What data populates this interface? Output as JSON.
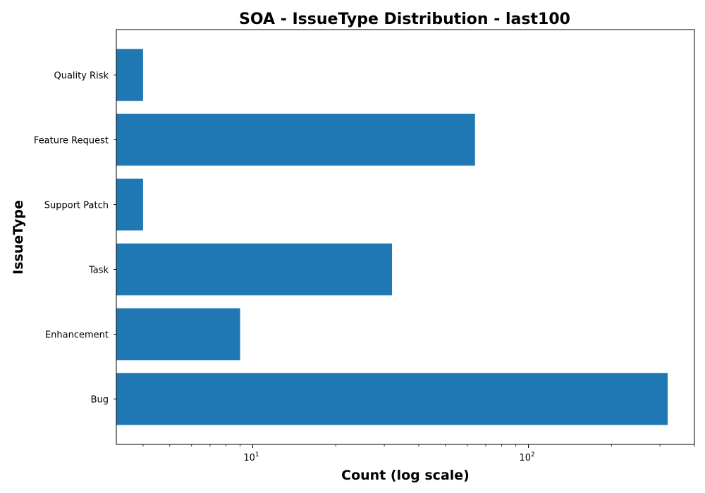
{
  "chart_data": {
    "type": "bar",
    "orientation": "horizontal",
    "title": "SOA - IssueType Distribution - last100",
    "xlabel": "Count (log scale)",
    "ylabel": "IssueType",
    "x_scale": "log",
    "xlim": [
      3.2,
      400
    ],
    "x_ticks": [
      {
        "value": 10,
        "base": "10",
        "exp": "1"
      },
      {
        "value": 100,
        "base": "10",
        "exp": "2"
      }
    ],
    "categories": [
      "Bug",
      "Enhancement",
      "Task",
      "Support Patch",
      "Feature Request",
      "Quality Risk"
    ],
    "values": [
      320,
      9,
      32,
      4,
      64,
      4
    ],
    "bar_color": "#1f77b4",
    "grid": false,
    "legend": "none"
  }
}
